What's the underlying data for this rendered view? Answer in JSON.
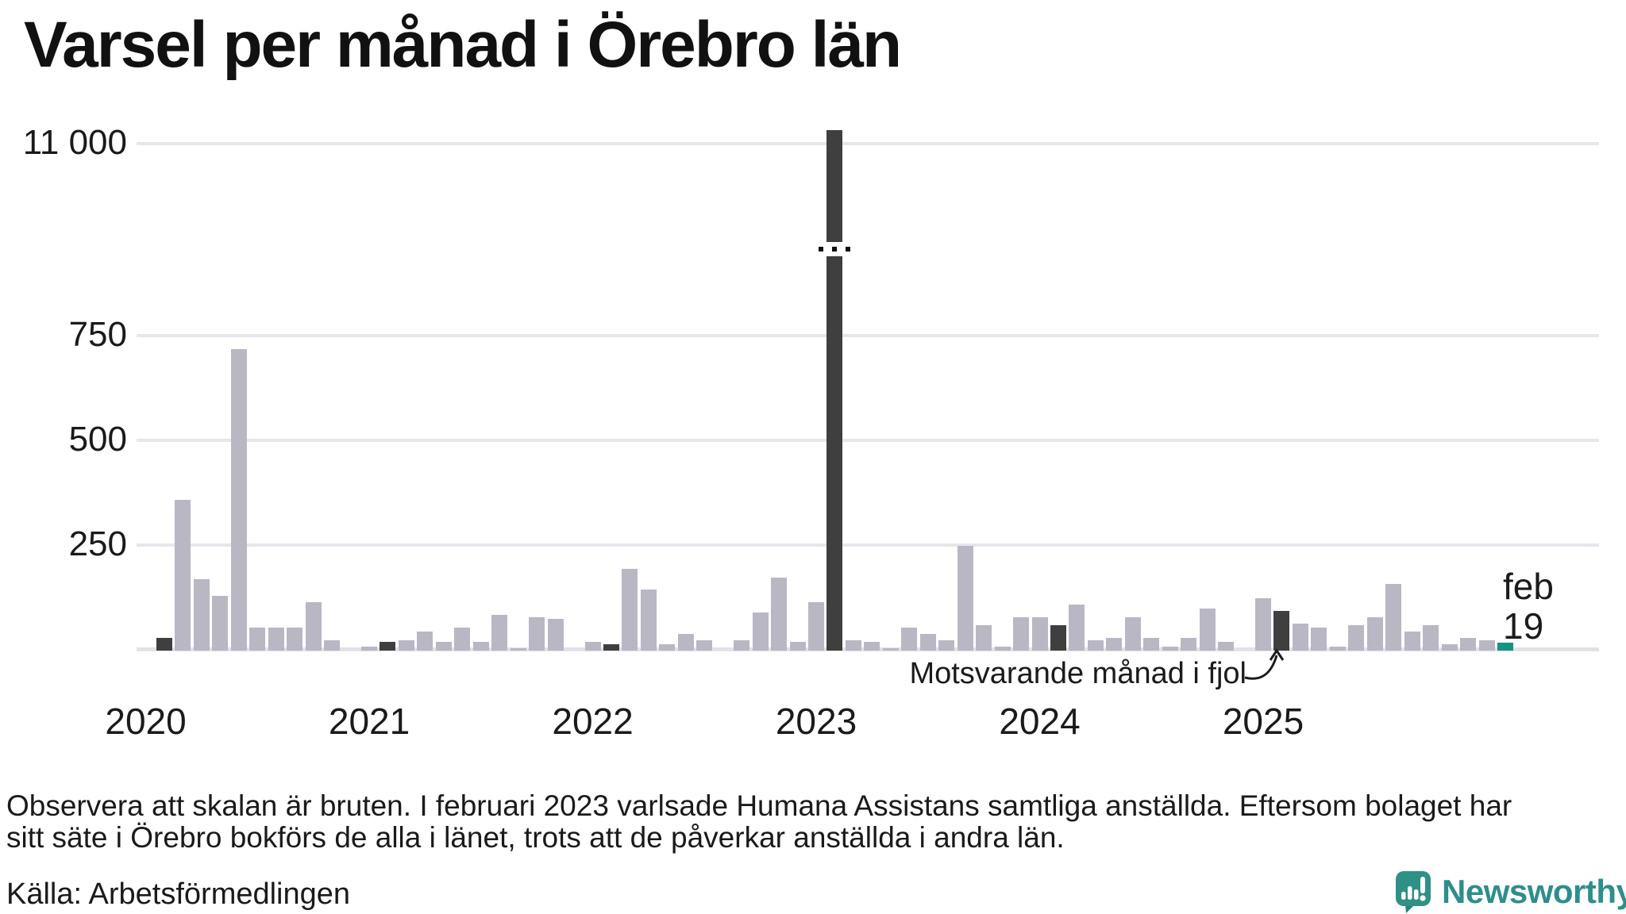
{
  "title": "Varsel per månad i Örebro län",
  "annotation": {
    "text": "Motsvarande månad i fjol"
  },
  "current_label": {
    "month": "feb",
    "value": "19"
  },
  "footnote_lines": [
    "Observera att skalan är bruten. I februari 2023 varlsade Humana Assistans samtliga anställda. Eftersom bolaget har",
    "sitt säte i Örebro bokförs de alla i länet, trots att de påverkar anställda i andra län."
  ],
  "source": "Källa: Arbetsförmedlingen",
  "logo_text": "Newsworthy",
  "colors": {
    "bar_normal": "#b9b7c4",
    "bar_compare": "#3f3f3f",
    "bar_current": "#11957f",
    "grid": "#e7e6ec",
    "axis_line": "#e3e2e8",
    "text": "#1a1a1a",
    "logo_teal": "#2e8e8b"
  },
  "chart_data": {
    "type": "bar",
    "title": "Varsel per månad i Örebro län",
    "ylabel": "",
    "xlabel": "",
    "broken_axis": true,
    "ylim": [
      0,
      800
    ],
    "grid": true,
    "y_ticks": [
      {
        "label": "11 000",
        "value": 11000
      },
      {
        "label": "750",
        "value": 750
      },
      {
        "label": "500",
        "value": 500
      },
      {
        "label": "250",
        "value": 250
      }
    ],
    "years": [
      "2020",
      "2021",
      "2022",
      "2023",
      "2024",
      "2025"
    ],
    "legend_note": "Dark bars = February each year (Motsvarande månad i fjol); teal bar = current month feb 19",
    "months": [
      {
        "month": "2020-02",
        "value": 30,
        "kind": "compare"
      },
      {
        "month": "2020-03",
        "value": 360,
        "kind": "normal"
      },
      {
        "month": "2020-04",
        "value": 170,
        "kind": "normal"
      },
      {
        "month": "2020-05",
        "value": 130,
        "kind": "normal"
      },
      {
        "month": "2020-06",
        "value": 720,
        "kind": "normal"
      },
      {
        "month": "2020-07",
        "value": 55,
        "kind": "normal"
      },
      {
        "month": "2020-08",
        "value": 55,
        "kind": "normal"
      },
      {
        "month": "2020-09",
        "value": 55,
        "kind": "normal"
      },
      {
        "month": "2020-10",
        "value": 115,
        "kind": "normal"
      },
      {
        "month": "2020-11",
        "value": 25,
        "kind": "normal"
      },
      {
        "month": "2020-12",
        "value": 0,
        "kind": "normal"
      },
      {
        "month": "2021-01",
        "value": 10,
        "kind": "normal"
      },
      {
        "month": "2021-02",
        "value": 20,
        "kind": "compare"
      },
      {
        "month": "2021-03",
        "value": 25,
        "kind": "normal"
      },
      {
        "month": "2021-04",
        "value": 45,
        "kind": "normal"
      },
      {
        "month": "2021-05",
        "value": 20,
        "kind": "normal"
      },
      {
        "month": "2021-06",
        "value": 55,
        "kind": "normal"
      },
      {
        "month": "2021-07",
        "value": 20,
        "kind": "normal"
      },
      {
        "month": "2021-08",
        "value": 85,
        "kind": "normal"
      },
      {
        "month": "2021-09",
        "value": 5,
        "kind": "normal"
      },
      {
        "month": "2021-10",
        "value": 80,
        "kind": "normal"
      },
      {
        "month": "2021-11",
        "value": 75,
        "kind": "normal"
      },
      {
        "month": "2021-12",
        "value": 0,
        "kind": "normal"
      },
      {
        "month": "2022-01",
        "value": 20,
        "kind": "normal"
      },
      {
        "month": "2022-02",
        "value": 15,
        "kind": "compare"
      },
      {
        "month": "2022-03",
        "value": 195,
        "kind": "normal"
      },
      {
        "month": "2022-04",
        "value": 145,
        "kind": "normal"
      },
      {
        "month": "2022-05",
        "value": 15,
        "kind": "normal"
      },
      {
        "month": "2022-06",
        "value": 40,
        "kind": "normal"
      },
      {
        "month": "2022-07",
        "value": 25,
        "kind": "normal"
      },
      {
        "month": "2022-08",
        "value": 0,
        "kind": "normal"
      },
      {
        "month": "2022-09",
        "value": 25,
        "kind": "normal"
      },
      {
        "month": "2022-10",
        "value": 90,
        "kind": "normal"
      },
      {
        "month": "2022-11",
        "value": 175,
        "kind": "normal"
      },
      {
        "month": "2022-12",
        "value": 20,
        "kind": "normal"
      },
      {
        "month": "2023-01",
        "value": 115,
        "kind": "normal"
      },
      {
        "month": "2023-02",
        "value": 11000,
        "kind": "compare",
        "broken": true
      },
      {
        "month": "2023-03",
        "value": 25,
        "kind": "normal"
      },
      {
        "month": "2023-04",
        "value": 20,
        "kind": "normal"
      },
      {
        "month": "2023-05",
        "value": 5,
        "kind": "normal"
      },
      {
        "month": "2023-06",
        "value": 55,
        "kind": "normal"
      },
      {
        "month": "2023-07",
        "value": 40,
        "kind": "normal"
      },
      {
        "month": "2023-08",
        "value": 25,
        "kind": "normal"
      },
      {
        "month": "2023-09",
        "value": 250,
        "kind": "normal"
      },
      {
        "month": "2023-10",
        "value": 60,
        "kind": "normal"
      },
      {
        "month": "2023-11",
        "value": 10,
        "kind": "normal"
      },
      {
        "month": "2023-12",
        "value": 80,
        "kind": "normal"
      },
      {
        "month": "2024-01",
        "value": 80,
        "kind": "normal"
      },
      {
        "month": "2024-02",
        "value": 60,
        "kind": "compare"
      },
      {
        "month": "2024-03",
        "value": 110,
        "kind": "normal"
      },
      {
        "month": "2024-04",
        "value": 25,
        "kind": "normal"
      },
      {
        "month": "2024-05",
        "value": 30,
        "kind": "normal"
      },
      {
        "month": "2024-06",
        "value": 80,
        "kind": "normal"
      },
      {
        "month": "2024-07",
        "value": 30,
        "kind": "normal"
      },
      {
        "month": "2024-08",
        "value": 10,
        "kind": "normal"
      },
      {
        "month": "2024-09",
        "value": 30,
        "kind": "normal"
      },
      {
        "month": "2024-10",
        "value": 100,
        "kind": "normal"
      },
      {
        "month": "2024-11",
        "value": 20,
        "kind": "normal"
      },
      {
        "month": "2024-12",
        "value": 0,
        "kind": "normal"
      },
      {
        "month": "2025-01",
        "value": 125,
        "kind": "normal"
      },
      {
        "month": "2025-02",
        "value": 95,
        "kind": "compare"
      },
      {
        "month": "2025-03",
        "value": 65,
        "kind": "normal"
      },
      {
        "month": "2025-04",
        "value": 55,
        "kind": "normal"
      },
      {
        "month": "2025-05",
        "value": 10,
        "kind": "normal"
      },
      {
        "month": "2025-06",
        "value": 60,
        "kind": "normal"
      },
      {
        "month": "2025-07",
        "value": 80,
        "kind": "normal"
      },
      {
        "month": "2025-08",
        "value": 160,
        "kind": "normal"
      },
      {
        "month": "2025-09",
        "value": 45,
        "kind": "normal"
      },
      {
        "month": "2025-10",
        "value": 60,
        "kind": "normal"
      },
      {
        "month": "2025-11",
        "value": 15,
        "kind": "normal"
      },
      {
        "month": "2025-12",
        "value": 30,
        "kind": "normal"
      },
      {
        "month": "2026-01",
        "value": 25,
        "kind": "normal"
      },
      {
        "month": "2026-02",
        "value": 19,
        "kind": "current"
      }
    ]
  }
}
